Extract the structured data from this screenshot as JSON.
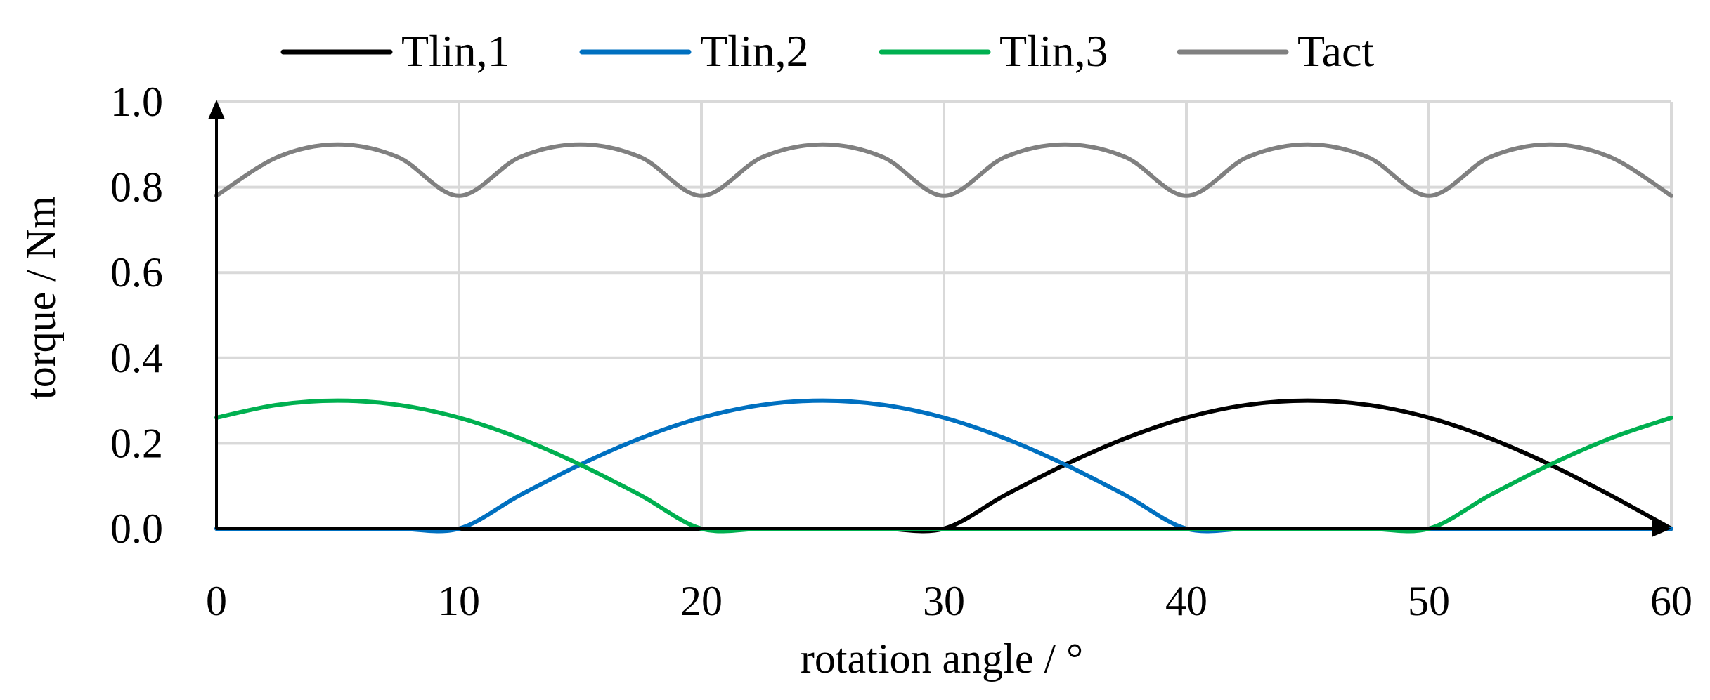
{
  "chart_data": {
    "type": "line",
    "xlabel": "rotation angle / °",
    "ylabel": "torque / Nm",
    "xlim": [
      0,
      60
    ],
    "ylim": [
      0,
      1.0
    ],
    "x_ticks": [
      "0",
      "10",
      "20",
      "30",
      "40",
      "50",
      "60"
    ],
    "y_ticks": [
      "0.0",
      "0.2",
      "0.4",
      "0.6",
      "0.8",
      "1.0"
    ],
    "grid": true,
    "legend_position": "top",
    "x": [
      0,
      2.5,
      5,
      7.5,
      10,
      12.5,
      15,
      17.5,
      20,
      22.5,
      25,
      27.5,
      30,
      32.5,
      35,
      37.5,
      40,
      42.5,
      45,
      47.5,
      50,
      52.5,
      55,
      57.5,
      60
    ],
    "series": [
      {
        "name": "Tlin,1",
        "color": "#000000",
        "values": [
          0,
          0,
          0,
          0,
          0,
          0,
          0,
          0,
          0,
          0,
          0,
          0,
          0,
          0.078,
          0.15,
          0.212,
          0.26,
          0.29,
          0.3,
          0.29,
          0.26,
          0.212,
          0.15,
          0.078,
          0
        ]
      },
      {
        "name": "Tlin,2",
        "color": "#0070C0",
        "values": [
          0,
          0,
          0,
          0,
          0,
          0.078,
          0.15,
          0.212,
          0.26,
          0.29,
          0.3,
          0.29,
          0.26,
          0.212,
          0.15,
          0.078,
          0,
          0,
          0,
          0,
          0,
          0,
          0,
          0,
          0
        ]
      },
      {
        "name": "Tlin,3",
        "color": "#00B050",
        "values": [
          0.26,
          0.29,
          0.3,
          0.29,
          0.26,
          0.212,
          0.15,
          0.078,
          0,
          0,
          0,
          0,
          0,
          0,
          0,
          0,
          0,
          0,
          0,
          0,
          0,
          0.078,
          0.15,
          0.212,
          0.26
        ]
      },
      {
        "name": "Tact",
        "color": "#808080",
        "values": [
          0.78,
          0.87,
          0.9,
          0.87,
          0.78,
          0.87,
          0.9,
          0.87,
          0.78,
          0.87,
          0.9,
          0.87,
          0.78,
          0.87,
          0.9,
          0.87,
          0.78,
          0.87,
          0.9,
          0.87,
          0.78,
          0.87,
          0.9,
          0.87,
          0.78
        ]
      }
    ]
  }
}
